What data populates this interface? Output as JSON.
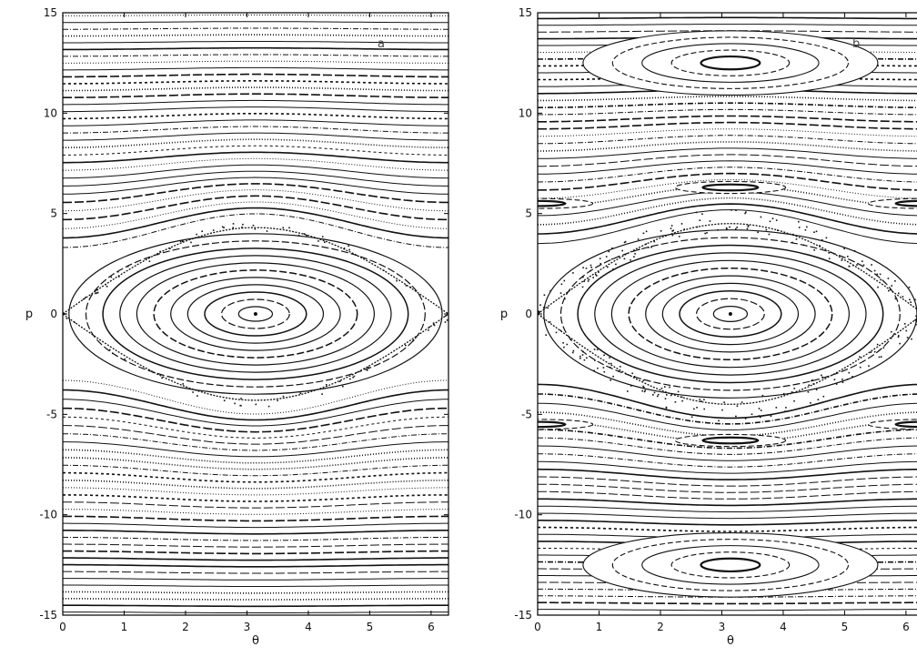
{
  "chart_data": [
    {
      "type": "scatter",
      "panel_label": "a",
      "xlabel": "θ",
      "ylabel": "p",
      "xlim": [
        0,
        6.283
      ],
      "ylim": [
        -15,
        15
      ],
      "xticks": [
        0,
        1,
        2,
        3,
        4,
        5,
        6
      ],
      "yticks": [
        -15,
        -10,
        -5,
        0,
        5,
        10,
        15
      ],
      "grid": false,
      "legend": "none",
      "island_center": [
        3.14,
        0
      ],
      "separatrix_halfwidth": 4.3,
      "resonance_islands": []
    },
    {
      "type": "scatter",
      "panel_label": "b",
      "xlabel": "θ",
      "ylabel": "p",
      "xlim": [
        0,
        6.283
      ],
      "ylim": [
        -15,
        15
      ],
      "xticks": [
        0,
        1,
        2,
        3,
        4,
        5,
        6
      ],
      "yticks": [
        -15,
        -10,
        -5,
        0,
        5,
        10,
        15
      ],
      "grid": false,
      "legend": "none",
      "island_center": [
        3.14,
        0
      ],
      "separatrix_halfwidth": 4.5,
      "resonance_islands": [
        {
          "theta": 3.14,
          "p": 12.5,
          "half_width": 1.6
        },
        {
          "theta": 3.14,
          "p": -12.5,
          "half_width": 1.6
        },
        {
          "theta": 3.14,
          "p": 6.3,
          "half_width": 0.3
        },
        {
          "theta": 3.14,
          "p": -6.3,
          "half_width": 0.3
        },
        {
          "theta": 0.0,
          "p": 5.5,
          "half_width": 0.25
        },
        {
          "theta": 0.0,
          "p": -5.5,
          "half_width": 0.25
        }
      ]
    }
  ]
}
